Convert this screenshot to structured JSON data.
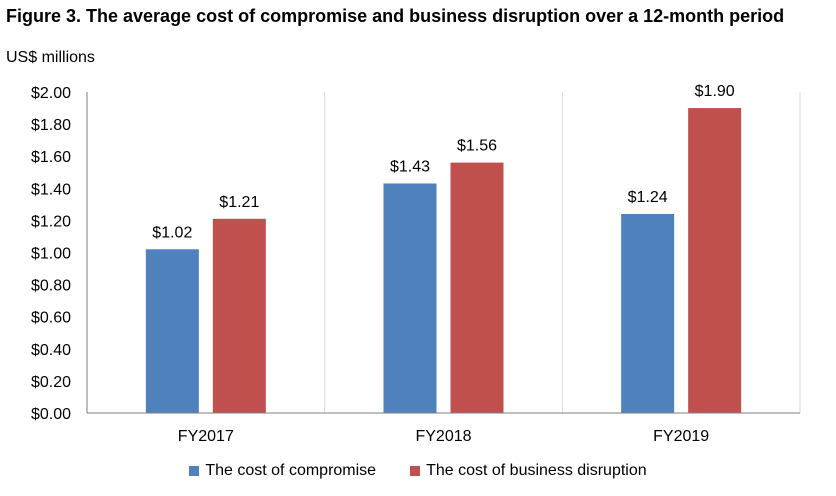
{
  "chart_data": {
    "type": "bar",
    "title": "Figure 3. The average cost of compromise and business disruption over a 12-month period",
    "subtitle": "US$ millions",
    "xlabel": "",
    "ylabel": "",
    "categories": [
      "FY2017",
      "FY2018",
      "FY2019"
    ],
    "series": [
      {
        "name": "The cost of compromise",
        "color": "#4f81bd",
        "values": [
          1.02,
          1.43,
          1.24
        ],
        "labels": [
          "$1.02",
          "$1.43",
          "$1.24"
        ]
      },
      {
        "name": "The cost of business disruption",
        "color": "#c0504d",
        "values": [
          1.21,
          1.56,
          1.9
        ],
        "labels": [
          "$1.21",
          "$1.56",
          "$1.90"
        ]
      }
    ],
    "ylim": [
      0,
      2.0
    ],
    "yticks": [
      0,
      0.2,
      0.4,
      0.6,
      0.8,
      1.0,
      1.2,
      1.4,
      1.6,
      1.8,
      2.0
    ],
    "ytick_labels": [
      "$0.00",
      "$0.20",
      "$0.40",
      "$0.60",
      "$0.80",
      "$1.00",
      "$1.20",
      "$1.40",
      "$1.60",
      "$1.80",
      "$2.00"
    ],
    "grid": "vertical category separators",
    "legend_position": "bottom"
  }
}
